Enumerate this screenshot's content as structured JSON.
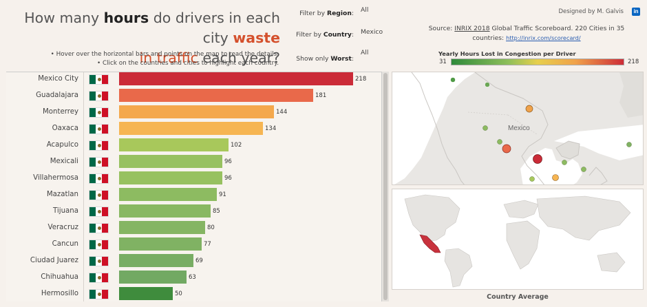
{
  "header": {
    "title_part1": "How many ",
    "title_hours": "hours",
    "title_part2": " do drivers in each city ",
    "title_waste": "waste",
    "title_line2_hl": "in traffic",
    "title_line2_rest": " each year?",
    "note1": "• Hover over the horizontal bars and points on the map to read the details.",
    "note2": "• Click on the countries and cities to highlight each country."
  },
  "filters": {
    "region_label_a": "Filter by ",
    "region_label_b": "Region",
    "region_label_c": ":",
    "region_value": "All",
    "country_label_a": "Filter by ",
    "country_label_b": "Country",
    "country_label_c": ":",
    "country_value": "Mexico",
    "worst_label_a": "Show only ",
    "worst_label_b": "Worst",
    "worst_label_c": ":",
    "worst_value": "All"
  },
  "credit": {
    "designer": "Designed by M. Galvis",
    "linkedin": "in"
  },
  "source": {
    "prefix": "Source: ",
    "inrix": "INRIX 2018",
    "rest": " Global Traffic Scoreboard. 220 Cities in 35 countries: ",
    "url": "http://inrix.com/scorecard/"
  },
  "legend": {
    "title": "Yearly Hours Lost in Congestion per Driver",
    "min": "31",
    "max": "218"
  },
  "map": {
    "country_label": "Mexico",
    "caption": "Country Average"
  },
  "colors": {
    "accent": "#d4502c",
    "flag_green": "#006847",
    "flag_red": "#ce1126"
  },
  "chart_data": {
    "type": "bar",
    "orientation": "horizontal",
    "categories": [
      "Mexico City",
      "Guadalajara",
      "Monterrey",
      "Oaxaca",
      "Acapulco",
      "Mexicali",
      "Villahermosa",
      "Mazatlan",
      "Tijuana",
      "Veracruz",
      "Cancun",
      "Ciudad Juarez",
      "Chihuahua",
      "Hermosillo"
    ],
    "values": [
      218,
      181,
      144,
      134,
      102,
      96,
      96,
      91,
      85,
      80,
      77,
      69,
      63,
      50
    ],
    "colors": [
      "#cb2b38",
      "#e9694a",
      "#f4a84c",
      "#f6b552",
      "#a8c85b",
      "#97c160",
      "#97c160",
      "#8dbb61",
      "#89b862",
      "#85b563",
      "#80b263",
      "#78ad64",
      "#72a963",
      "#3f8c3d"
    ],
    "flag": "Mexico",
    "xlim": [
      0,
      218
    ]
  }
}
